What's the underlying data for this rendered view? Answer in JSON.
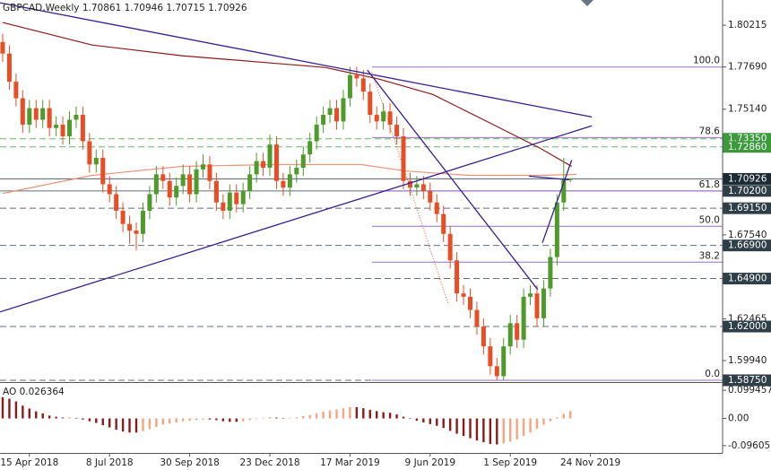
{
  "chart_data": {
    "type": "candlestick",
    "title": "GBPCAD,Weekly  1.70861 1.70946 1.70715 1.70926",
    "up_color": "#4e9a2a",
    "down_color": "#e84e26",
    "ylim": [
      1.5864,
      1.8174
    ],
    "yticks": [
      1.80215,
      {
        "value": 1.7769,
        "label": "1.77690"
      },
      {
        "value": 1.7514,
        "label": "1.75140"
      },
      {
        "value": 1.6754,
        "label": "1.67540"
      },
      1.62465,
      {
        "value": 1.5994,
        "label": "1.59940"
      }
    ],
    "categories": [
      null,
      null,
      null,
      null,
      "15 Apr 2018",
      null,
      null,
      null,
      null,
      null,
      null,
      null,
      null,
      null,
      null,
      null,
      "8 Jul 2018",
      null,
      null,
      null,
      null,
      null,
      null,
      null,
      null,
      null,
      null,
      null,
      "30 Sep 2018",
      null,
      null,
      null,
      null,
      null,
      null,
      null,
      null,
      null,
      null,
      null,
      "23 Dec 2018",
      null,
      null,
      null,
      null,
      null,
      null,
      null,
      null,
      null,
      null,
      null,
      "17 Mar 2019",
      null,
      null,
      null,
      null,
      null,
      null,
      null,
      null,
      null,
      null,
      null,
      "9 Jun 2019",
      null,
      null,
      null,
      null,
      null,
      null,
      null,
      null,
      null,
      null,
      null,
      "1 Sep 2019",
      null,
      null,
      null,
      null,
      null,
      null,
      null,
      null,
      null,
      null,
      null,
      "24 Nov 2019"
    ],
    "candles": {
      "open": [
        1.792,
        1.785,
        1.768,
        1.758,
        1.742,
        1.752,
        1.745,
        1.752,
        1.74,
        1.742,
        1.735,
        1.745,
        1.748,
        1.732,
        1.718,
        1.722,
        1.706,
        1.7,
        1.69,
        1.682,
        1.678,
        1.676,
        1.69,
        1.7,
        1.712,
        1.708,
        1.698,
        1.705,
        1.712,
        1.7,
        1.715,
        1.718,
        1.708,
        1.695,
        1.69,
        1.701,
        1.694,
        1.702,
        1.712,
        1.72,
        1.716,
        1.73,
        1.708,
        1.704,
        1.712,
        1.716,
        1.724,
        1.732,
        1.742,
        1.748,
        1.752,
        1.744,
        1.758,
        1.772,
        1.77,
        1.762,
        1.748,
        1.744,
        1.75,
        1.742,
        1.735,
        1.708,
        1.704,
        1.706,
        1.702,
        1.695,
        1.688,
        1.676,
        1.66,
        1.64,
        1.638,
        1.63,
        1.62,
        1.608,
        1.596,
        1.59,
        1.608,
        1.622,
        1.612,
        1.638,
        1.64,
        1.625,
        1.643,
        1.662,
        1.695,
        1.70861,
        null,
        null,
        null
      ],
      "high": [
        1.797,
        1.79,
        1.773,
        1.763,
        1.757,
        1.757,
        1.757,
        1.757,
        1.747,
        1.747,
        1.75,
        1.753,
        1.753,
        1.737,
        1.727,
        1.727,
        1.711,
        1.705,
        1.695,
        1.687,
        1.683,
        1.695,
        1.705,
        1.717,
        1.717,
        1.713,
        1.71,
        1.718,
        1.717,
        1.72,
        1.724,
        1.723,
        1.713,
        1.7,
        1.706,
        1.706,
        1.707,
        1.717,
        1.725,
        1.725,
        1.736,
        1.735,
        1.713,
        1.717,
        1.721,
        1.729,
        1.737,
        1.747,
        1.753,
        1.757,
        1.757,
        1.763,
        1.777,
        1.777,
        1.775,
        1.767,
        1.753,
        1.755,
        1.755,
        1.747,
        1.74,
        1.713,
        1.711,
        1.711,
        1.707,
        1.7,
        1.693,
        1.681,
        1.665,
        1.645,
        1.643,
        1.635,
        1.625,
        1.613,
        1.601,
        1.613,
        1.627,
        1.627,
        1.643,
        1.645,
        1.645,
        1.648,
        1.667,
        1.7,
        1.722,
        1.70946,
        null,
        null,
        null
      ],
      "low": [
        1.78,
        1.763,
        1.753,
        1.737,
        1.737,
        1.74,
        1.74,
        1.735,
        1.735,
        1.73,
        1.73,
        1.74,
        1.727,
        1.713,
        1.713,
        1.701,
        1.695,
        1.685,
        1.677,
        1.67,
        1.666,
        1.671,
        1.685,
        1.695,
        1.703,
        1.693,
        1.693,
        1.7,
        1.695,
        1.695,
        1.71,
        1.703,
        1.69,
        1.685,
        1.685,
        1.689,
        1.689,
        1.697,
        1.707,
        1.711,
        1.711,
        1.703,
        1.699,
        1.699,
        1.707,
        1.711,
        1.719,
        1.727,
        1.737,
        1.743,
        1.739,
        1.739,
        1.753,
        1.765,
        1.757,
        1.743,
        1.739,
        1.739,
        1.737,
        1.73,
        1.703,
        1.699,
        1.699,
        1.697,
        1.69,
        1.683,
        1.671,
        1.655,
        1.635,
        1.633,
        1.625,
        1.615,
        1.603,
        1.591,
        1.5875,
        1.5875,
        1.603,
        1.607,
        1.607,
        1.633,
        1.62,
        1.62,
        1.638,
        1.657,
        1.69,
        1.70715,
        null,
        null,
        null
      ],
      "close": [
        1.785,
        1.768,
        1.758,
        1.742,
        1.752,
        1.745,
        1.752,
        1.74,
        1.742,
        1.735,
        1.745,
        1.748,
        1.732,
        1.718,
        1.722,
        1.706,
        1.7,
        1.69,
        1.682,
        1.678,
        1.676,
        1.69,
        1.7,
        1.712,
        1.708,
        1.698,
        1.705,
        1.712,
        1.7,
        1.715,
        1.718,
        1.708,
        1.695,
        1.69,
        1.701,
        1.694,
        1.702,
        1.712,
        1.72,
        1.716,
        1.73,
        1.708,
        1.704,
        1.712,
        1.716,
        1.724,
        1.732,
        1.742,
        1.748,
        1.752,
        1.744,
        1.758,
        1.772,
        1.77,
        1.762,
        1.748,
        1.744,
        1.75,
        1.742,
        1.735,
        1.708,
        1.704,
        1.706,
        1.702,
        1.695,
        1.688,
        1.676,
        1.66,
        1.64,
        1.638,
        1.63,
        1.62,
        1.608,
        1.596,
        1.59,
        1.608,
        1.622,
        1.612,
        1.638,
        1.64,
        1.625,
        1.643,
        1.662,
        1.695,
        1.70861,
        1.70926,
        null,
        null,
        null
      ]
    },
    "moving_averages": [
      {
        "color": "#8b1a1a",
        "points": [
          [
            0,
            1.8038
          ],
          [
            13.4,
            1.7902
          ],
          [
            26.8,
            1.7837
          ],
          [
            40.3,
            1.7793
          ],
          [
            48.3,
            1.7766
          ],
          [
            56.4,
            1.7695
          ],
          [
            64.4,
            1.7603
          ],
          [
            72.5,
            1.744
          ],
          [
            80.5,
            1.7277
          ],
          [
            85.2,
            1.7168
          ]
        ]
      },
      {
        "color": "#e8967a",
        "points": [
          [
            0,
            1.7005
          ],
          [
            13.4,
            1.7114
          ],
          [
            26.8,
            1.7168
          ],
          [
            40.3,
            1.7179
          ],
          [
            53.7,
            1.7179
          ],
          [
            60.4,
            1.714
          ],
          [
            69.8,
            1.7114
          ],
          [
            80.5,
            1.7114
          ],
          [
            85.9,
            1.712
          ]
        ]
      }
    ],
    "trendlines": [
      {
        "color": "#3a1f8c",
        "points": [
          [
            -0.4,
            1.8157
          ],
          [
            88.2,
            1.7467
          ]
        ]
      },
      {
        "color": "#3a1f8c",
        "points": [
          [
            -0.4,
            1.6288
          ],
          [
            88.2,
            1.7413
          ]
        ]
      },
      {
        "color": "#3a1f8c",
        "points": [
          [
            54.6,
            1.775
          ],
          [
            80.1,
            1.6424
          ]
        ]
      },
      {
        "color": "#3a1f8c",
        "points": [
          [
            78.8,
            1.7109
          ],
          [
            84.8,
            1.7087
          ]
        ]
      },
      {
        "color": "#3a1f8c",
        "points": [
          [
            80.8,
            1.6706
          ],
          [
            85.2,
            1.7206
          ]
        ]
      },
      {
        "color": "#e84e26",
        "dotted": true,
        "points": [
          [
            55.3,
            1.7739
          ],
          [
            66.7,
            1.6337
          ]
        ]
      }
    ],
    "fib_start": 55.3,
    "fib_color": "#9b6fc4",
    "fib_levels": [
      {
        "label": "100.0",
        "price": 1.7769
      },
      {
        "label": "78.6",
        "price": 1.73425
      },
      {
        "label": "61.8",
        "price": 1.702
      },
      {
        "label": "50.0",
        "price": 1.6806
      },
      {
        "label": "38.2",
        "price": 1.6589
      },
      {
        "label": "0.0",
        "price": 1.5875
      }
    ],
    "levels": [
      {
        "value": 1.7335,
        "label": "1.73350",
        "color": "#3c9a3c",
        "dashed": true
      },
      {
        "value": 1.7286,
        "label": "1.72860",
        "color": "#3c9a3c",
        "dashed": true
      },
      {
        "value": 1.70926,
        "label": "1.70926",
        "color": "#1c2a33",
        "dashed": false
      },
      {
        "value": 1.702,
        "label": "1.70200",
        "color": "#2f3f48",
        "dashed": false
      },
      {
        "value": 1.6915,
        "label": "1.69150",
        "color": "#2f3f48",
        "dashed": true
      },
      {
        "value": 1.669,
        "label": "1.66900",
        "color": "#2f3f48",
        "dashed": true
      },
      {
        "value": 1.649,
        "label": "1.64900",
        "color": "#2f3f48",
        "dashed": true
      },
      {
        "value": 1.62,
        "label": "1.62000",
        "color": "#2f3f48",
        "dashed": true
      },
      {
        "value": 1.5875,
        "label": "1.58750",
        "color": "#2f3f48",
        "dashed": true
      }
    ],
    "ao": {
      "title": "AO 0.026364",
      "rising_color": "#f4a582",
      "falling_color": "#8b1a1a",
      "ylim": [
        -0.122,
        0.122
      ],
      "yticks": [
        0.099457,
        {
          "value": 0,
          "label": "0.00"
        },
        -0.096051
      ],
      "values": [
        0.075,
        0.07,
        0.06,
        0.045,
        0.035,
        0.025,
        0.018,
        0.01,
        0.006,
        0.003,
        0.004,
        0.002,
        -0.004,
        -0.01,
        -0.016,
        -0.024,
        -0.032,
        -0.04,
        -0.046,
        -0.05,
        -0.05,
        -0.045,
        -0.038,
        -0.03,
        -0.022,
        -0.018,
        -0.014,
        -0.01,
        -0.008,
        -0.006,
        -0.004,
        -0.004,
        -0.006,
        -0.01,
        -0.012,
        -0.012,
        -0.01,
        -0.006,
        -0.002,
        0.002,
        0.004,
        0.003,
        0.001,
        0.002,
        0.004,
        0.008,
        0.012,
        0.018,
        0.024,
        0.028,
        0.032,
        0.036,
        0.04,
        0.04,
        0.036,
        0.03,
        0.026,
        0.022,
        0.02,
        0.014,
        0.006,
        -0.002,
        -0.008,
        -0.014,
        -0.02,
        -0.026,
        -0.034,
        -0.044,
        -0.054,
        -0.062,
        -0.07,
        -0.078,
        -0.084,
        -0.09,
        -0.092,
        -0.088,
        -0.082,
        -0.074,
        -0.062,
        -0.05,
        -0.036,
        -0.022,
        -0.01,
        0.004,
        0.016,
        0.026364,
        null,
        null,
        null
      ]
    }
  }
}
